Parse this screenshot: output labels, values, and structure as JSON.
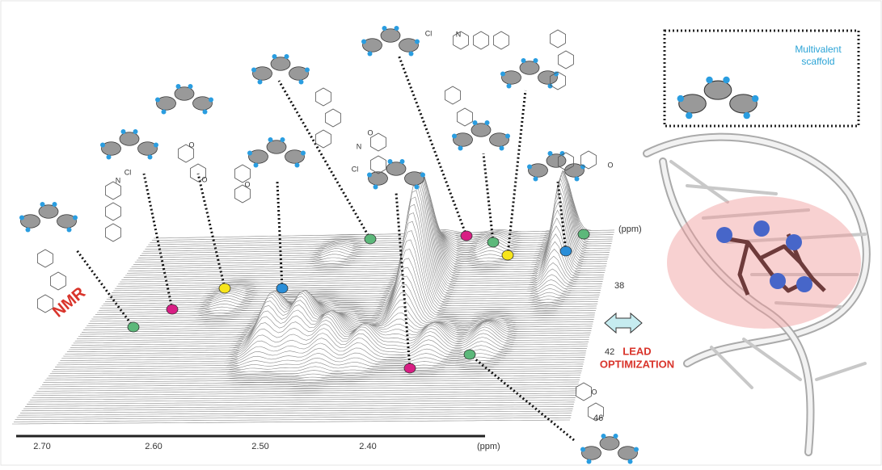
{
  "scaffold_box": {
    "label_lines": [
      "Multivalent",
      "scaffold"
    ]
  },
  "labels": {
    "method": "NMR",
    "lead_lines": [
      "LEAD",
      "OPTIMIZATION"
    ]
  },
  "x_axis": {
    "unit": "(ppm)",
    "ticks": [
      "2.70",
      "2.60",
      "2.50",
      "2.40"
    ]
  },
  "y_axis": {
    "unit": "(ppm)",
    "ticks": [
      "38",
      "42",
      "46"
    ]
  },
  "atoms": [
    "Cl",
    "N",
    "Cl",
    "N",
    "N",
    "Cl",
    "O",
    "O",
    "O",
    "O",
    "O",
    "O"
  ]
}
